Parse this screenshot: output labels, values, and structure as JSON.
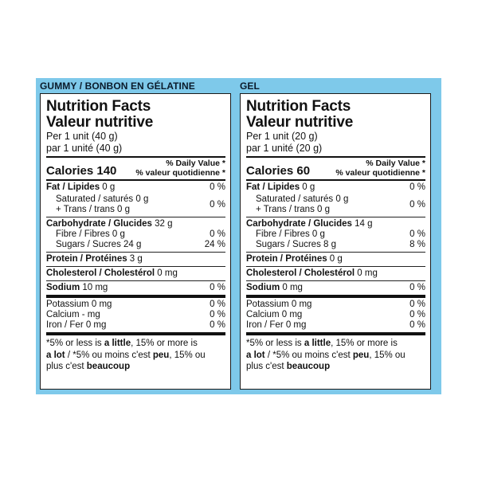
{
  "panels": [
    {
      "header": "GUMMY / BONBON EN GÉLATINE",
      "title_en": "Nutrition Facts",
      "title_fr": "Valeur nutritive",
      "serving_en": "Per 1 unit (40 g)",
      "serving_fr": "par 1 unité (40 g)",
      "calories": "Calories 140",
      "dv_en": "% Daily Value *",
      "dv_fr": "% valeur quotidienne *",
      "fat_label": "Fat / Lipides",
      "fat_value": " 0 g",
      "fat_dv": "0 %",
      "sat_line": "Saturated / saturés 0 g",
      "trans_line": "+ Trans / trans 0 g",
      "sat_trans_dv": "0 %",
      "carb_label": "Carbohydrate / Glucides",
      "carb_value": " 32 g",
      "fibre_line": "Fibre / Fibres 0 g",
      "fibre_dv": "0 %",
      "sugars_line": "Sugars / Sucres 24 g",
      "sugars_dv": "24 %",
      "protein_label": "Protein / Protéines",
      "protein_value": " 3 g",
      "chol_label": "Cholesterol / Cholestérol",
      "chol_value": " 0 mg",
      "sodium_label": "Sodium",
      "sodium_value": " 10 mg",
      "sodium_dv": "0 %",
      "potassium_line": "Potassium 0 mg",
      "potassium_dv": "0 %",
      "calcium_line": "Calcium - mg",
      "calcium_dv": "0 %",
      "iron_line": "Iron / Fer 0 mg",
      "iron_dv": "0 %",
      "foot_a": "*5% or less is ",
      "foot_b": "a little",
      "foot_c": ", 15% or more is",
      "foot_d": "a lot",
      "foot_e": " / *5% ou moins c'est ",
      "foot_f": "peu",
      "foot_g": ", 15% ou",
      "foot_h": "plus c'est ",
      "foot_i": "beaucoup"
    },
    {
      "header": "GEL",
      "title_en": "Nutrition Facts",
      "title_fr": "Valeur nutritive",
      "serving_en": "Per 1 unit (20 g)",
      "serving_fr": "par 1 unité (20 g)",
      "calories": "Calories 60",
      "dv_en": "% Daily Value *",
      "dv_fr": "% valeur quotidienne *",
      "fat_label": "Fat / Lipides",
      "fat_value": " 0 g",
      "fat_dv": "0 %",
      "sat_line": "Saturated / saturés 0 g",
      "trans_line": "+ Trans / trans 0 g",
      "sat_trans_dv": "0 %",
      "carb_label": "Carbohydrate / Glucides",
      "carb_value": " 14 g",
      "fibre_line": "Fibre / Fibres 0 g",
      "fibre_dv": "0 %",
      "sugars_line": "Sugars / Sucres 8 g",
      "sugars_dv": "8 %",
      "protein_label": "Protein / Protéines",
      "protein_value": " 0 g",
      "chol_label": "Cholesterol / Cholestérol",
      "chol_value": " 0 mg",
      "sodium_label": "Sodium",
      "sodium_value": " 0 mg",
      "sodium_dv": "0 %",
      "potassium_line": "Potassium 0 mg",
      "potassium_dv": "0 %",
      "calcium_line": "Calcium 0 mg",
      "calcium_dv": "0 %",
      "iron_line": "Iron / Fer 0 mg",
      "iron_dv": "0 %",
      "foot_a": "*5% or less is ",
      "foot_b": "a little",
      "foot_c": ", 15% or more is",
      "foot_d": "a lot",
      "foot_e": " / *5% ou moins c'est ",
      "foot_f": "peu",
      "foot_g": ", 15% ou",
      "foot_h": "plus c'est ",
      "foot_i": "beaucoup"
    }
  ],
  "colors": {
    "frame": "#7ec9ea",
    "border": "#1a1a1a"
  }
}
